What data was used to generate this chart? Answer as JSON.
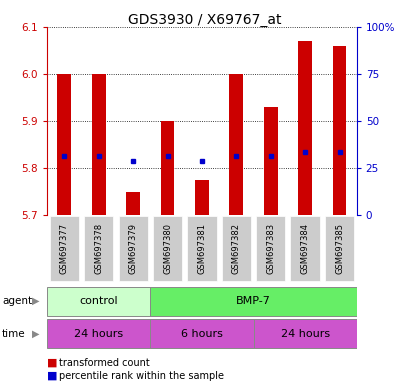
{
  "title": "GDS3930 / X69767_at",
  "samples": [
    "GSM697377",
    "GSM697378",
    "GSM697379",
    "GSM697380",
    "GSM697381",
    "GSM697382",
    "GSM697383",
    "GSM697384",
    "GSM697385"
  ],
  "bar_values": [
    6.0,
    6.0,
    5.75,
    5.9,
    5.775,
    6.0,
    5.93,
    6.07,
    6.06
  ],
  "bar_base": 5.7,
  "percentile_values": [
    5.825,
    5.825,
    5.815,
    5.825,
    5.815,
    5.825,
    5.825,
    5.835,
    5.835
  ],
  "ylim": [
    5.7,
    6.1
  ],
  "y2lim": [
    0,
    100
  ],
  "yticks": [
    5.7,
    5.8,
    5.9,
    6.0,
    6.1
  ],
  "y2ticks": [
    0,
    25,
    50,
    75,
    100
  ],
  "y2tick_labels": [
    "0",
    "25",
    "50",
    "75",
    "100%"
  ],
  "bar_color": "#cc0000",
  "percentile_color": "#0000cc",
  "agent_labels": [
    "control",
    "BMP-7"
  ],
  "agent_colors": [
    "#ccffcc",
    "#66ee66"
  ],
  "time_labels": [
    "24 hours",
    "6 hours",
    "24 hours"
  ],
  "time_color": "#cc55cc",
  "legend_red": "transformed count",
  "legend_blue": "percentile rank within the sample",
  "left_tick_color": "#cc0000",
  "right_tick_color": "#0000cc",
  "sample_box_color": "#cccccc",
  "title_fontsize": 10,
  "tick_fontsize": 7.5,
  "bar_width": 0.4
}
